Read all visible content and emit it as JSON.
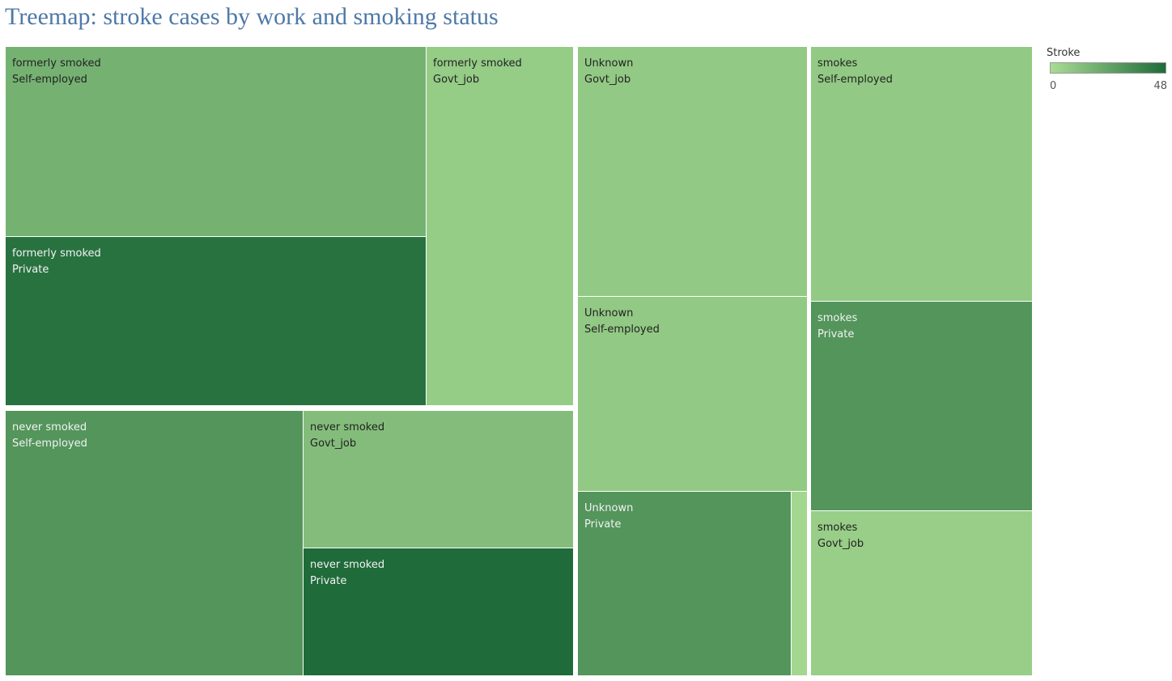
{
  "chart_data": {
    "type": "treemap",
    "title": "Treemap: stroke cases by work and smoking status",
    "color_measure": "Stroke",
    "color_range": [
      0,
      48
    ],
    "color_min": "#a9dc93",
    "color_max": "#1f6b3a",
    "groups": [
      {
        "name": "formerly smoked",
        "cells": [
          {
            "smoking": "formerly smoked",
            "work": "Self-employed",
            "stroke": 18
          },
          {
            "smoking": "formerly smoked",
            "work": "Private",
            "stroke": 45
          },
          {
            "smoking": "formerly smoked",
            "work": "Govt_job",
            "stroke": 7
          }
        ]
      },
      {
        "name": "never smoked",
        "cells": [
          {
            "smoking": "never smoked",
            "work": "Self-employed",
            "stroke": 30
          },
          {
            "smoking": "never smoked",
            "work": "Govt_job",
            "stroke": 13
          },
          {
            "smoking": "never smoked",
            "work": "Private",
            "stroke": 48
          }
        ]
      },
      {
        "name": "Unknown",
        "cells": [
          {
            "smoking": "Unknown",
            "work": "Govt_job",
            "stroke": 8
          },
          {
            "smoking": "Unknown",
            "work": "Self-employed",
            "stroke": 8
          },
          {
            "smoking": "Unknown",
            "work": "Private",
            "stroke": 30
          },
          {
            "smoking": "Unknown",
            "work": "",
            "stroke": 2
          }
        ]
      },
      {
        "name": "smokes",
        "cells": [
          {
            "smoking": "smokes",
            "work": "Self-employed",
            "stroke": 8
          },
          {
            "smoking": "smokes",
            "work": "Private",
            "stroke": 30
          },
          {
            "smoking": "smokes",
            "work": "Govt_job",
            "stroke": 6
          }
        ]
      }
    ]
  },
  "legend": {
    "title": "Stroke",
    "min_label": "0",
    "max_label": "48"
  }
}
